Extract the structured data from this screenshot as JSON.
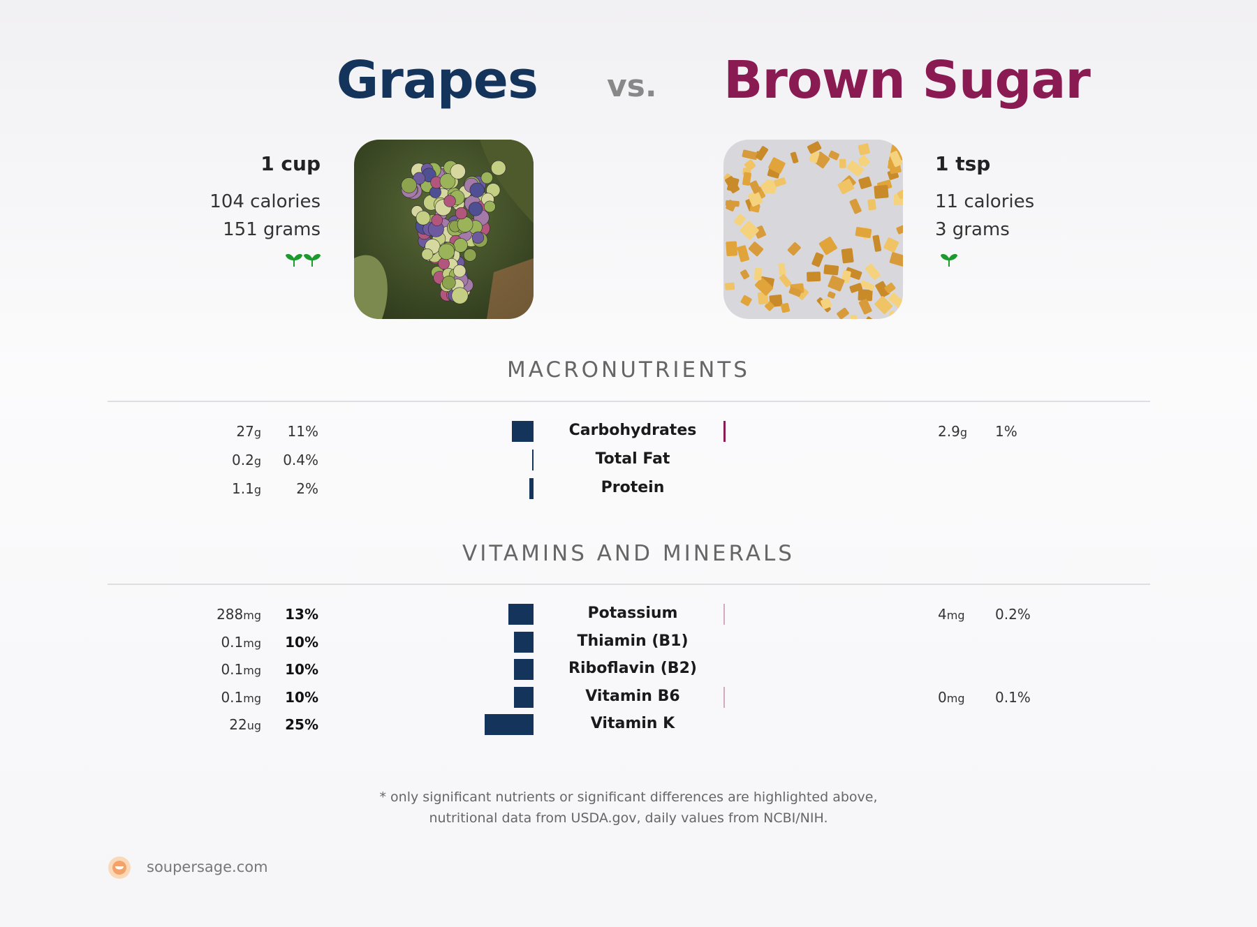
{
  "header": {
    "left_title": "Grapes",
    "vs": "vs.",
    "right_title": "Brown Sugar",
    "left_color": "#14345c",
    "right_color": "#8a1a52"
  },
  "left_food": {
    "serving": "1 cup",
    "calories": "104 calories",
    "grams": "151 grams",
    "leaf_icons": 2
  },
  "right_food": {
    "serving": "1 tsp",
    "calories": "11 calories",
    "grams": "3 grams",
    "leaf_icons": 1
  },
  "sections": {
    "macros": "MACRONUTRIENTS",
    "vitamins": "VITAMINS AND MINERALS"
  },
  "footer": {
    "line1": "* only significant nutrients or significant differences are highlighted above,",
    "line2": "nutritional data from USDA.gov, daily values from NCBI/NIH.",
    "brand": "soupersage.com"
  },
  "chart_data": [
    {
      "type": "bar",
      "title": "MACRONUTRIENTS",
      "categories": [
        "Carbohydrates",
        "Total Fat",
        "Protein"
      ],
      "series": [
        {
          "name": "Grapes",
          "amounts": [
            "27",
            "0.2",
            "1.1"
          ],
          "units": [
            "g",
            "g",
            "g"
          ],
          "percent_labels": [
            "11%",
            "0.4%",
            "2%"
          ],
          "values": [
            11,
            0.4,
            2
          ]
        },
        {
          "name": "Brown Sugar",
          "amounts": [
            "2.9",
            "",
            ""
          ],
          "units": [
            "g",
            "",
            ""
          ],
          "percent_labels": [
            "1%",
            "",
            ""
          ],
          "values": [
            1,
            0,
            0
          ]
        }
      ]
    },
    {
      "type": "bar",
      "title": "VITAMINS AND MINERALS",
      "categories": [
        "Potassium",
        "Thiamin (B1)",
        "Riboflavin (B2)",
        "Vitamin B6",
        "Vitamin K"
      ],
      "series": [
        {
          "name": "Grapes",
          "amounts": [
            "288",
            "0.1",
            "0.1",
            "0.1",
            "22"
          ],
          "units": [
            "mg",
            "mg",
            "mg",
            "mg",
            "ug"
          ],
          "percent_labels": [
            "13%",
            "10%",
            "10%",
            "10%",
            "25%"
          ],
          "values": [
            13,
            10,
            10,
            10,
            25
          ]
        },
        {
          "name": "Brown Sugar",
          "amounts": [
            "4",
            "",
            "",
            "0",
            ""
          ],
          "units": [
            "mg",
            "",
            "",
            "mg",
            ""
          ],
          "percent_labels": [
            "0.2%",
            "",
            "",
            "0.1%",
            ""
          ],
          "values": [
            0.2,
            0,
            0,
            0.1,
            0
          ]
        }
      ]
    }
  ]
}
